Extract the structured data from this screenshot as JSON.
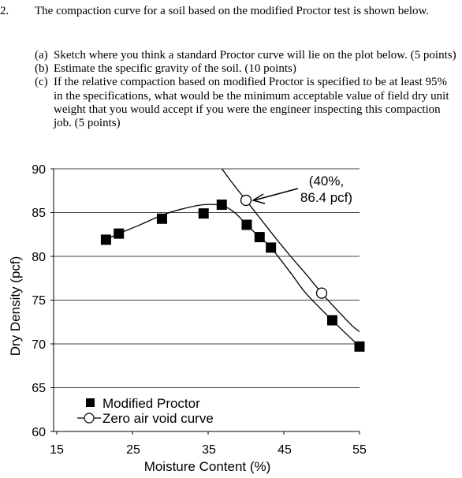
{
  "problem": {
    "number": "2.",
    "text": "The compaction curve for a soil based on the modified Proctor test is shown below.",
    "parts": [
      {
        "label": "(a)",
        "text": "Sketch where you think a standard Proctor curve will lie on the plot below.  (5 points)"
      },
      {
        "label": "(b)",
        "text": "Estimate the specific gravity of the soil.  (10 points)"
      },
      {
        "label": "(c)",
        "text": "If the relative compaction based on modified Proctor is specified to be at least 95% in the specifications, what would be the minimum acceptable value of field dry unit weight that you would accept if you were the engineer inspecting this compaction job.  (5 points)"
      }
    ]
  },
  "chart_data": {
    "type": "scatter",
    "xlabel": "Moisture Content (%)",
    "ylabel": "Dry Density (pcf)",
    "xlim": [
      15,
      55
    ],
    "ylim": [
      60,
      90
    ],
    "xticks": [
      "15",
      "25",
      "35",
      "45",
      "55"
    ],
    "yticks": [
      "60",
      "65",
      "70",
      "75",
      "80",
      "85",
      "90"
    ],
    "grid": "horizontal",
    "legend_position": "bottom-left",
    "series": [
      {
        "name": "Modified Proctor",
        "marker": "filled-square",
        "color": "#000000",
        "x": [
          21.5,
          23.2,
          28.9,
          34.4,
          36.8,
          40.1,
          41.8,
          43.3,
          51.4,
          55.0
        ],
        "y": [
          81.9,
          82.6,
          84.3,
          84.9,
          85.9,
          83.6,
          82.2,
          81.0,
          72.7,
          69.7
        ],
        "fit_curve": {
          "x": [
            21.5,
            23.2,
            26,
            28.9,
            31.5,
            34.4,
            36.8,
            38.5,
            40.1,
            41.8,
            43.3,
            46,
            48,
            51.4,
            55.0
          ],
          "y": [
            81.9,
            82.6,
            83.6,
            84.7,
            85.4,
            85.9,
            85.8,
            85.0,
            83.6,
            82.2,
            81.0,
            78.0,
            75.7,
            72.7,
            69.7
          ]
        }
      },
      {
        "name": "Zero air void curve",
        "marker": "open-circle",
        "color": "#000000",
        "x": [
          40.0,
          50.0
        ],
        "y": [
          86.4,
          75.8
        ],
        "line": {
          "x": [
            36.0,
            38,
            40.0,
            42,
            44,
            46,
            48,
            50.0,
            52,
            54,
            55.0
          ],
          "y": [
            91.0,
            88.6,
            86.4,
            84.2,
            82.0,
            79.9,
            77.9,
            75.8,
            73.9,
            72.1,
            71.4
          ]
        }
      }
    ],
    "annotation": {
      "lines": [
        "(40%,",
        "86.4 pcf)"
      ],
      "points_to": {
        "x": 40.0,
        "y": 86.4
      }
    }
  }
}
